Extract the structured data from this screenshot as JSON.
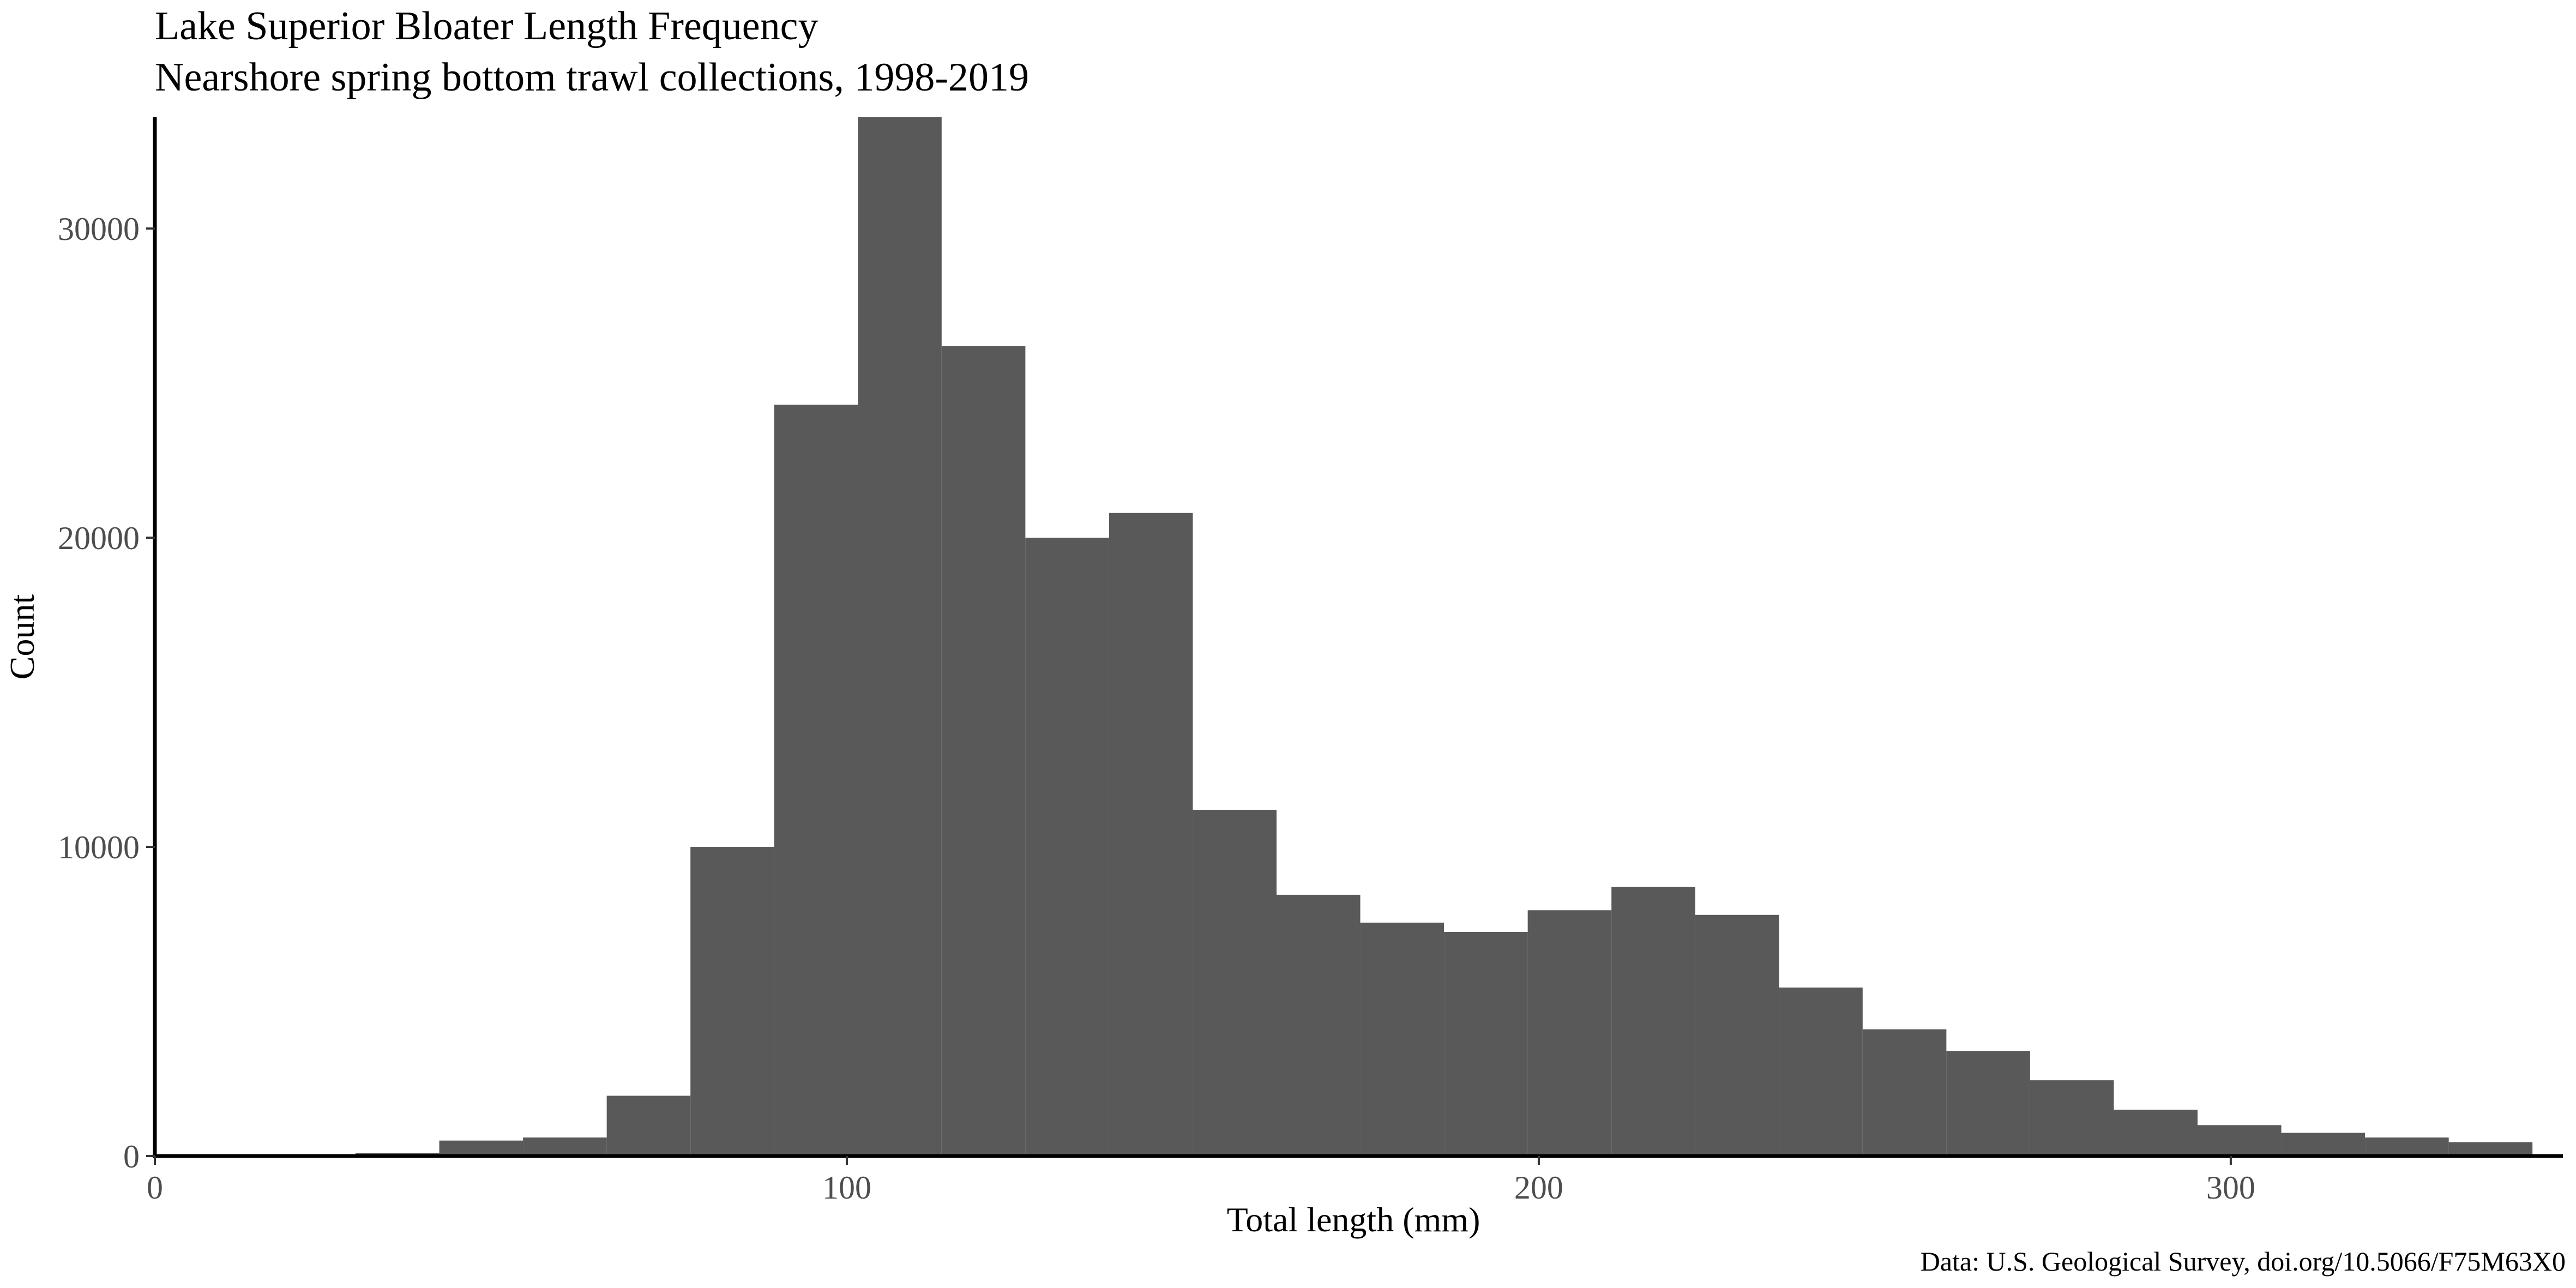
{
  "chart_data": {
    "type": "bar",
    "title": "Lake Superior Bloater Length Frequency",
    "subtitle": "Nearshore spring bottom trawl collections, 1998-2019",
    "xlabel": "Total length (mm)",
    "ylabel": "Count",
    "caption": "Data: U.S. Geological Survey, doi.org/10.5066/F75M63X0",
    "xlim": [
      0,
      348
    ],
    "ylim": [
      0,
      33600
    ],
    "x_ticks": [
      0,
      100,
      200,
      300
    ],
    "y_ticks": [
      0,
      10000,
      20000,
      30000
    ],
    "bins": [
      {
        "x0": 29.0,
        "x1": 41.1,
        "count": 100
      },
      {
        "x0": 41.1,
        "x1": 53.2,
        "count": 500
      },
      {
        "x0": 53.2,
        "x1": 65.3,
        "count": 600
      },
      {
        "x0": 65.3,
        "x1": 77.4,
        "count": 1950
      },
      {
        "x0": 77.4,
        "x1": 89.5,
        "count": 10000
      },
      {
        "x0": 89.5,
        "x1": 101.6,
        "count": 24300
      },
      {
        "x0": 101.6,
        "x1": 113.7,
        "count": 33600
      },
      {
        "x0": 113.7,
        "x1": 125.8,
        "count": 26200
      },
      {
        "x0": 125.8,
        "x1": 137.9,
        "count": 20000
      },
      {
        "x0": 137.9,
        "x1": 150.0,
        "count": 20800
      },
      {
        "x0": 150.0,
        "x1": 162.1,
        "count": 11200
      },
      {
        "x0": 162.1,
        "x1": 174.2,
        "count": 8450
      },
      {
        "x0": 174.2,
        "x1": 186.3,
        "count": 7550
      },
      {
        "x0": 186.3,
        "x1": 198.4,
        "count": 7250
      },
      {
        "x0": 198.4,
        "x1": 210.5,
        "count": 7950
      },
      {
        "x0": 210.5,
        "x1": 222.6,
        "count": 8700
      },
      {
        "x0": 222.6,
        "x1": 234.7,
        "count": 7800
      },
      {
        "x0": 234.7,
        "x1": 246.8,
        "count": 5450
      },
      {
        "x0": 246.8,
        "x1": 258.9,
        "count": 4100
      },
      {
        "x0": 258.9,
        "x1": 271.0,
        "count": 3400
      },
      {
        "x0": 271.0,
        "x1": 283.1,
        "count": 2450
      },
      {
        "x0": 283.1,
        "x1": 295.2,
        "count": 1500
      },
      {
        "x0": 295.2,
        "x1": 307.3,
        "count": 1000
      },
      {
        "x0": 307.3,
        "x1": 319.4,
        "count": 750
      },
      {
        "x0": 319.4,
        "x1": 331.5,
        "count": 600
      },
      {
        "x0": 331.5,
        "x1": 343.6,
        "count": 450
      }
    ],
    "bar_color": "#595959",
    "grid": false,
    "legend": "none"
  }
}
